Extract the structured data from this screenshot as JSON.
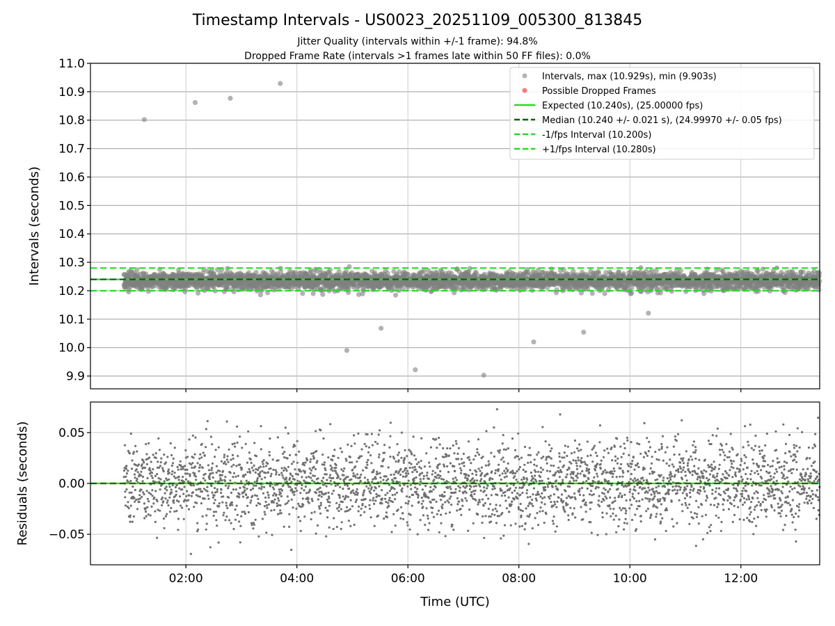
{
  "chart_data": [
    {
      "type": "scatter",
      "title": "Timestamp Intervals - US0023_20251109_005300_813845",
      "subtitle_1": "Jitter Quality (intervals within +/-1 frame): 94.8%",
      "subtitle_2": "Dropped Frame Rate (intervals >1 frames late within 50 FF files): 0.0%",
      "ylabel": "Intervals (seconds)",
      "ylim": [
        9.855,
        11.0
      ],
      "xlim_hours": [
        0.28,
        13.42
      ],
      "yticks": [
        "9.9",
        "10.0",
        "10.1",
        "10.2",
        "10.3",
        "10.4",
        "10.5",
        "10.6",
        "10.7",
        "10.8",
        "10.9",
        "11.0"
      ],
      "grid": true,
      "legend_position": "upper-right",
      "series": [
        {
          "name": "Intervals, max (10.929s), min (9.903s)",
          "kind": "points",
          "color": "#808080",
          "bulk": {
            "x_start": "00:53",
            "x_end": "13:25",
            "center": 10.235,
            "spread_sd": 0.0155
          },
          "outliers": [
            {
              "x": "01:15",
              "y": 10.802
            },
            {
              "x": "02:10",
              "y": 10.862
            },
            {
              "x": "02:48",
              "y": 10.877
            },
            {
              "x": "03:42",
              "y": 10.929
            },
            {
              "x": "04:54",
              "y": 9.99
            },
            {
              "x": "05:31",
              "y": 10.068
            },
            {
              "x": "06:08",
              "y": 9.922
            },
            {
              "x": "07:22",
              "y": 9.903
            },
            {
              "x": "08:16",
              "y": 10.02
            },
            {
              "x": "09:10",
              "y": 10.054
            },
            {
              "x": "10:20",
              "y": 10.121
            }
          ]
        },
        {
          "name": "Possible Dropped Frames",
          "kind": "points",
          "color": "#ff5555",
          "points": []
        },
        {
          "name": "Expected (10.240s), (25.00000 fps)",
          "kind": "hline",
          "y": 10.24,
          "color": "#22dd22",
          "style": "solid"
        },
        {
          "name": "Median (10.240 +/- 0.021 s), (24.99970 +/- 0.05 fps)",
          "kind": "hline",
          "y": 10.24,
          "color": "#006400",
          "style": "dashed"
        },
        {
          "name": "-1/fps Interval (10.200s)",
          "kind": "hline",
          "y": 10.2,
          "color": "#22dd22",
          "style": "dashed"
        },
        {
          "name": "+1/fps Interval (10.280s)",
          "kind": "hline",
          "y": 10.28,
          "color": "#22dd22",
          "style": "dashed"
        }
      ]
    },
    {
      "type": "scatter",
      "xlabel": "Time (UTC)",
      "ylabel": "Residuals (seconds)",
      "ylim": [
        -0.08,
        0.08
      ],
      "xlim_hours": [
        0.28,
        13.42
      ],
      "yticks": [
        "−0.05",
        "0.00",
        "0.05"
      ],
      "xticks": [
        "02:00",
        "04:00",
        "06:00",
        "08:00",
        "10:00",
        "12:00"
      ],
      "grid": true,
      "series": [
        {
          "kind": "points",
          "color": "#707070",
          "bulk": {
            "x_start": "00:53",
            "x_end": "13:25",
            "center": 0.0,
            "spread_sd": 0.021
          }
        },
        {
          "kind": "hline",
          "y": 0.0,
          "color": "#22dd22",
          "style": "solid"
        },
        {
          "kind": "hline",
          "y": 0.0,
          "color": "#006400",
          "style": "dashed"
        }
      ]
    }
  ]
}
